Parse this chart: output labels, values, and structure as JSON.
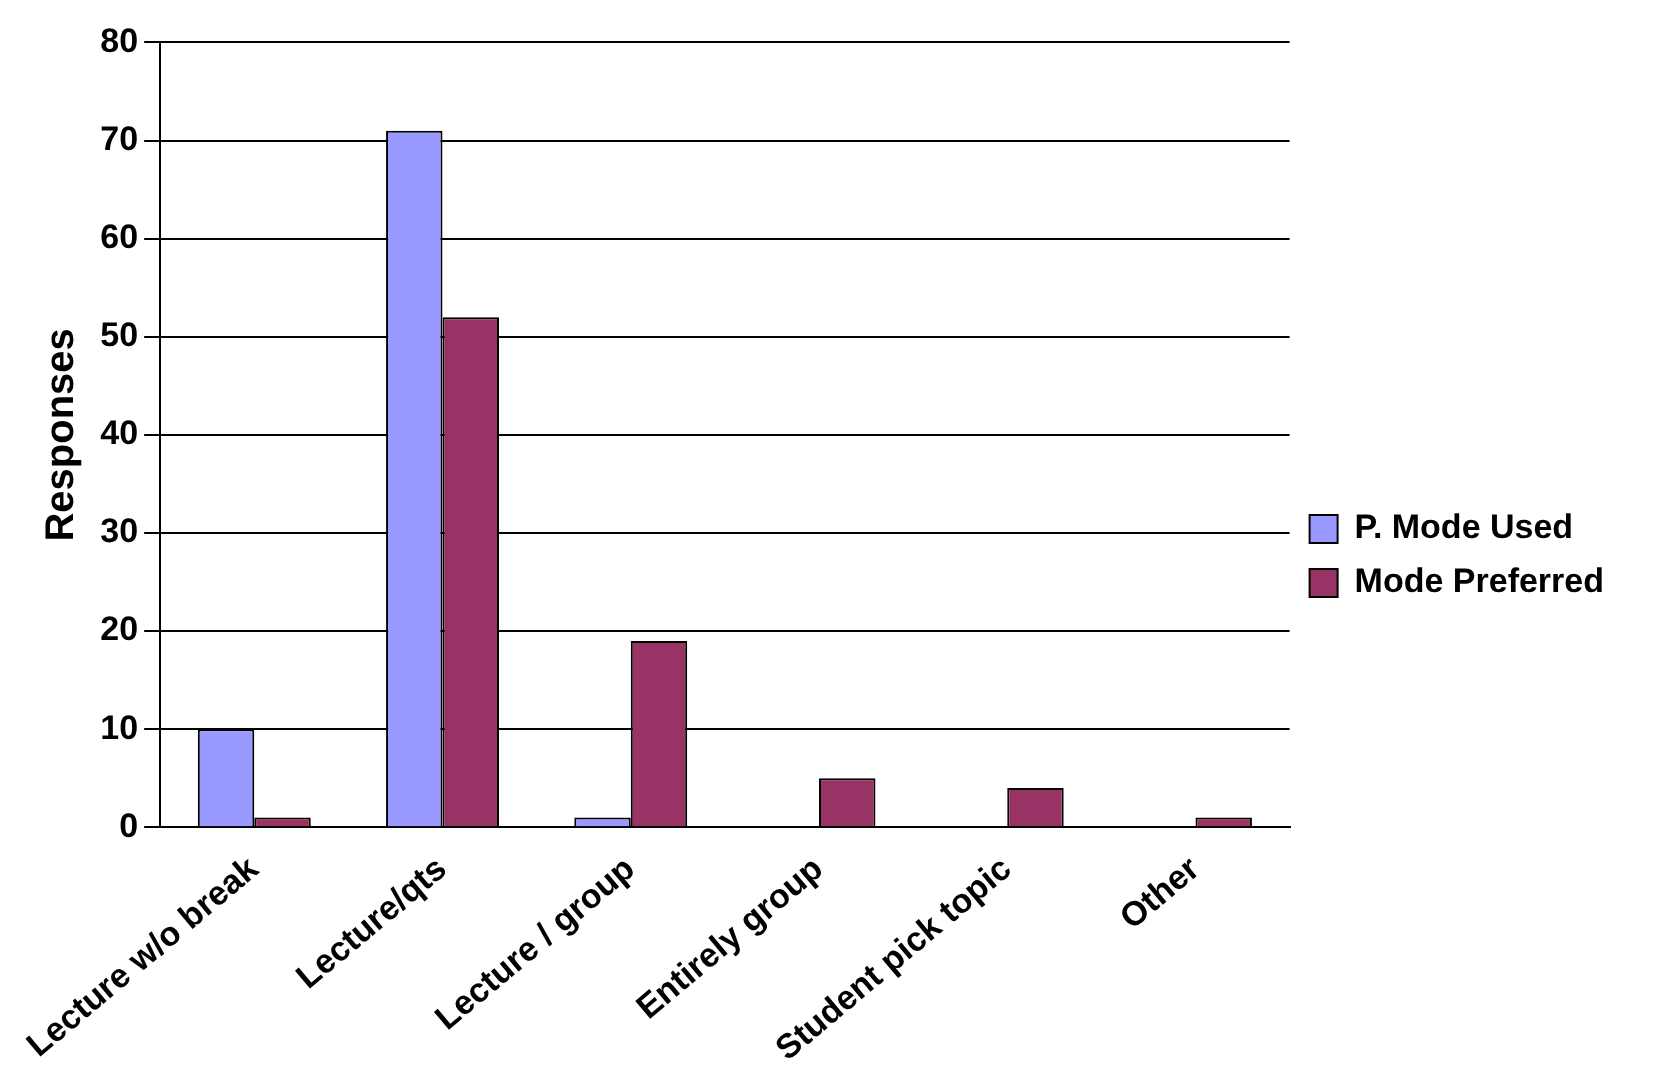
{
  "chart_data": {
    "type": "bar",
    "ylabel": "Responses",
    "categories": [
      "Lecture w/o break",
      "Lecture/qts",
      "Lecture / group",
      "Entirely group",
      "Student pick topic",
      "Other"
    ],
    "series": [
      {
        "name": "P. Mode Used",
        "color": "#9999ff",
        "values": [
          10,
          71,
          1,
          0,
          0,
          0
        ]
      },
      {
        "name": "Mode Preferred",
        "color": "#993366",
        "values": [
          1,
          52,
          19,
          5,
          4,
          1
        ]
      }
    ],
    "ylim": [
      0,
      80
    ],
    "yticks": [
      0,
      10,
      20,
      30,
      40,
      50,
      60,
      70,
      80
    ],
    "grid": "y",
    "legend": "right"
  }
}
